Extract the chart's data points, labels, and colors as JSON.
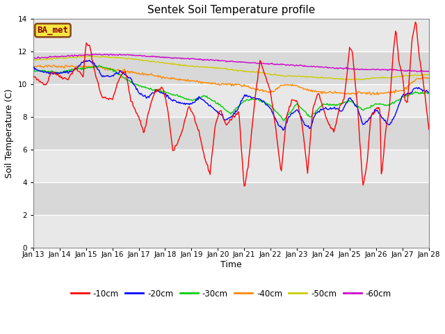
{
  "title": "Sentek Soil Temperature profile",
  "xlabel": "Time",
  "ylabel": "Soil Temperature (C)",
  "ylim": [
    0,
    14
  ],
  "yticks": [
    0,
    2,
    4,
    6,
    8,
    10,
    12,
    14
  ],
  "x_labels": [
    "Jan 13",
    "Jan 14",
    "Jan 15",
    "Jan 16",
    "Jan 17",
    "Jan 18",
    "Jan 19",
    "Jan 20",
    "Jan 21",
    "Jan 22",
    "Jan 23",
    "Jan 24",
    "Jan 25",
    "Jan 26",
    "Jan 27",
    "Jan 28"
  ],
  "legend_label": "BA_met",
  "legend_box_color": "#f5e642",
  "legend_box_edge_color": "#8B4513",
  "legend_text_color": "#8B0000",
  "colors": {
    "-10cm": "#ff0000",
    "-20cm": "#0000ff",
    "-30cm": "#00cc00",
    "-40cm": "#ff8800",
    "-50cm": "#cccc00",
    "-60cm": "#cc00cc"
  },
  "background_color": "#ffffff",
  "plot_bg_color": "#e0e0e0",
  "band_light": "#e8e8e8",
  "band_dark": "#d8d8d8",
  "grid_color": "#ffffff",
  "n_points": 500
}
